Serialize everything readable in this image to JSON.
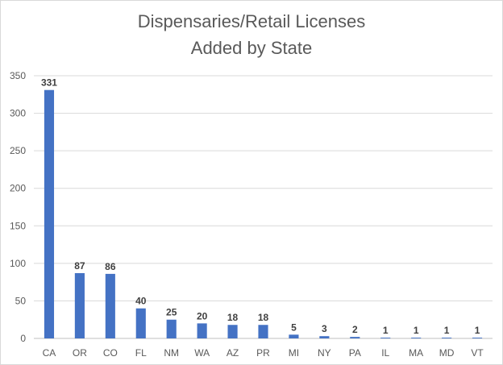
{
  "chart_data": {
    "type": "bar",
    "title_lines": [
      "Dispensaries/Retail Licenses",
      "Added by State"
    ],
    "categories": [
      "CA",
      "OR",
      "CO",
      "FL",
      "NM",
      "WA",
      "AZ",
      "PR",
      "MI",
      "NY",
      "PA",
      "IL",
      "MA",
      "MD",
      "VT"
    ],
    "values": [
      331,
      87,
      86,
      40,
      25,
      20,
      18,
      18,
      5,
      3,
      2,
      1,
      1,
      1,
      1
    ],
    "xlabel": "",
    "ylabel": "",
    "ylim": [
      0,
      350
    ],
    "yticks": [
      0,
      50,
      100,
      150,
      200,
      250,
      300,
      350
    ],
    "grid": true,
    "legend": "none",
    "bar_color": "#4472c4",
    "data_labels": true
  }
}
